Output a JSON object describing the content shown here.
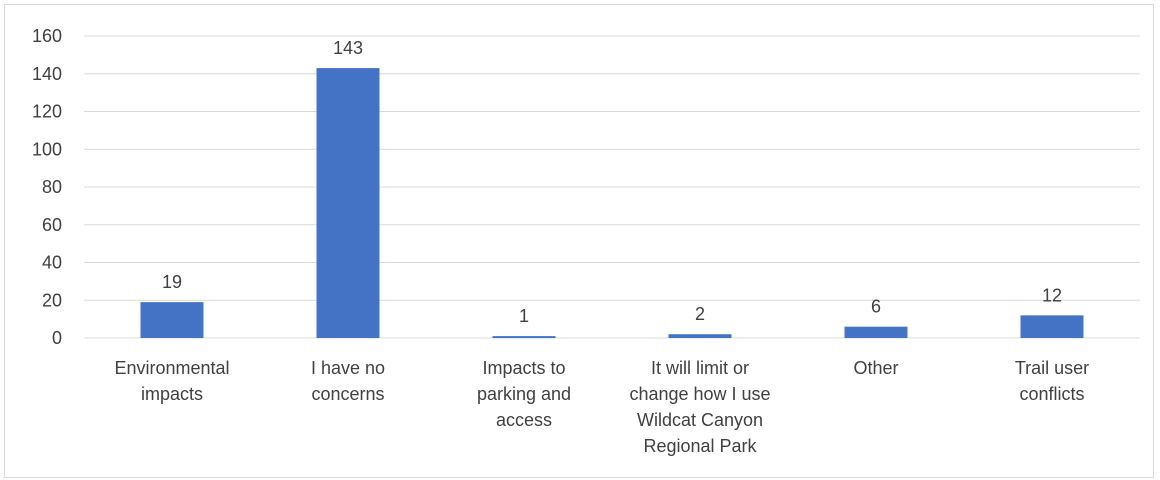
{
  "chart_data": {
    "type": "bar",
    "categories": [
      [
        "Environmental",
        "impacts"
      ],
      [
        "I have no",
        "concerns"
      ],
      [
        "Impacts to",
        "parking and",
        "access"
      ],
      [
        "It will limit or",
        "change how I use",
        "Wildcat Canyon",
        "Regional Park"
      ],
      [
        "Other"
      ],
      [
        "Trail user",
        "conflicts"
      ]
    ],
    "values": [
      19,
      143,
      1,
      2,
      6,
      12
    ],
    "data_labels": [
      "19",
      "143",
      "1",
      "2",
      "6",
      "12"
    ],
    "y_ticks": [
      "0",
      "20",
      "40",
      "60",
      "80",
      "100",
      "120",
      "140",
      "160"
    ],
    "ylim": [
      0,
      160
    ],
    "title": "",
    "xlabel": "",
    "ylabel": "",
    "grid": true,
    "legend": "none",
    "colors": {
      "bar": "#4472c4",
      "grid": "#d9d9d9",
      "text": "#404040",
      "axis": "#d9d9d9"
    }
  }
}
